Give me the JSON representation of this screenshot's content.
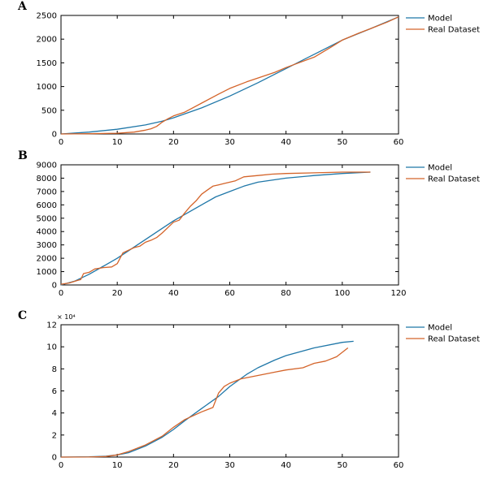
{
  "colors": {
    "model": "#1f77a8",
    "real": "#d4642a"
  },
  "chart_data": [
    {
      "panel": "A",
      "type": "line",
      "xlim": [
        0,
        60
      ],
      "ylim": [
        0,
        2500
      ],
      "xticks": [
        0,
        10,
        20,
        30,
        40,
        50,
        60
      ],
      "yticks": [
        0,
        500,
        1000,
        1500,
        2000,
        2500
      ],
      "ytick_labels": [
        "0",
        "500",
        "1000",
        "1500",
        "2000",
        "2500"
      ],
      "multiplier": "",
      "legend": "top-right",
      "series": [
        {
          "name": "Model",
          "x": [
            0,
            5,
            10,
            15,
            18,
            20,
            25,
            30,
            35,
            38,
            40,
            45,
            50,
            55,
            60
          ],
          "y": [
            0,
            40,
            100,
            190,
            270,
            340,
            550,
            800,
            1080,
            1260,
            1380,
            1680,
            1980,
            2220,
            2470
          ]
        },
        {
          "name": "Real Dataset",
          "x": [
            0,
            5,
            10,
            13,
            15,
            16,
            17,
            18,
            19,
            20,
            22,
            25,
            28,
            30,
            33,
            35,
            38,
            40,
            45,
            48,
            50,
            53,
            55,
            58,
            60
          ],
          "y": [
            0,
            5,
            15,
            40,
            80,
            110,
            160,
            250,
            320,
            380,
            460,
            650,
            840,
            960,
            1100,
            1180,
            1300,
            1400,
            1620,
            1830,
            1980,
            2130,
            2220,
            2360,
            2470
          ]
        }
      ]
    },
    {
      "panel": "B",
      "type": "line",
      "xlim": [
        0,
        120
      ],
      "ylim": [
        0,
        9000
      ],
      "xticks": [
        0,
        20,
        40,
        60,
        80,
        100,
        120
      ],
      "yticks": [
        0,
        1000,
        2000,
        3000,
        4000,
        5000,
        6000,
        7000,
        8000,
        9000
      ],
      "ytick_labels": [
        "0",
        "1000",
        "2000",
        "3000",
        "4000",
        "5000",
        "6000",
        "7000",
        "8000",
        "9000"
      ],
      "multiplier": "",
      "legend": "top-right",
      "series": [
        {
          "name": "Model",
          "x": [
            0,
            5,
            10,
            15,
            20,
            25,
            30,
            35,
            40,
            45,
            50,
            55,
            60,
            65,
            70,
            80,
            90,
            100,
            110
          ],
          "y": [
            0,
            300,
            800,
            1400,
            2000,
            2700,
            3400,
            4100,
            4800,
            5400,
            6000,
            6600,
            7000,
            7400,
            7700,
            8000,
            8200,
            8350,
            8450
          ]
        },
        {
          "name": "Real Dataset",
          "x": [
            0,
            3,
            6,
            7,
            8,
            10,
            12,
            15,
            18,
            20,
            21,
            22,
            24,
            26,
            28,
            30,
            32,
            34,
            36,
            38,
            40,
            42,
            44,
            46,
            48,
            50,
            52,
            54,
            56,
            58,
            60,
            62,
            65,
            70,
            75,
            80,
            90,
            100,
            105,
            110
          ],
          "y": [
            50,
            150,
            350,
            400,
            850,
            950,
            1200,
            1300,
            1350,
            1600,
            2000,
            2400,
            2600,
            2800,
            2900,
            3200,
            3350,
            3550,
            3900,
            4300,
            4700,
            4850,
            5400,
            5900,
            6300,
            6800,
            7100,
            7400,
            7500,
            7600,
            7700,
            7800,
            8100,
            8200,
            8300,
            8350,
            8400,
            8450,
            8450,
            8450
          ]
        }
      ]
    },
    {
      "panel": "C",
      "type": "line",
      "xlim": [
        0,
        60
      ],
      "ylim": [
        0,
        120000
      ],
      "xticks": [
        0,
        10,
        20,
        30,
        40,
        50,
        60
      ],
      "yticks": [
        0,
        20000,
        40000,
        60000,
        80000,
        100000,
        120000
      ],
      "ytick_labels": [
        "0",
        "2",
        "4",
        "6",
        "8",
        "10",
        "12"
      ],
      "multiplier": "× 10⁴",
      "legend": "top-right",
      "series": [
        {
          "name": "Model",
          "x": [
            0,
            5,
            8,
            10,
            12,
            15,
            18,
            20,
            22,
            25,
            28,
            30,
            33,
            35,
            38,
            40,
            45,
            50,
            52
          ],
          "y": [
            0,
            200,
            800,
            2000,
            4000,
            10000,
            18000,
            25000,
            33000,
            44000,
            55000,
            64000,
            75000,
            81000,
            88000,
            92000,
            99000,
            104000,
            105000
          ]
        },
        {
          "name": "Real Dataset",
          "x": [
            0,
            5,
            8,
            10,
            12,
            15,
            18,
            20,
            22,
            25,
            26,
            27,
            28,
            29,
            30,
            32,
            35,
            38,
            40,
            43,
            45,
            47,
            49,
            51
          ],
          "y": [
            0,
            100,
            500,
            2000,
            5000,
            11000,
            19000,
            27000,
            34000,
            41000,
            43000,
            45000,
            58000,
            64000,
            67000,
            71000,
            74000,
            77000,
            79000,
            81000,
            85000,
            87000,
            91000,
            99000
          ]
        }
      ]
    }
  ]
}
